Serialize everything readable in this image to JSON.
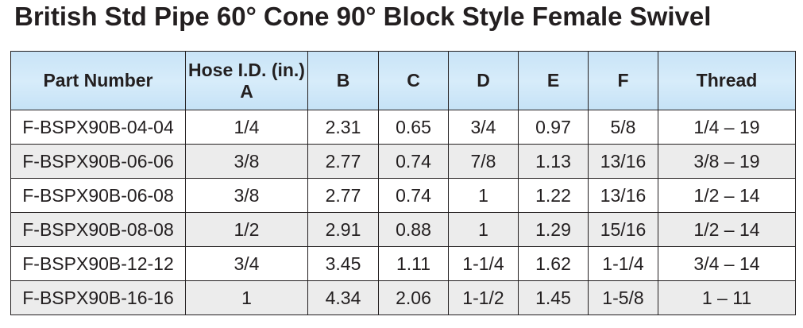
{
  "title": "British Std Pipe 60° Cone 90° Block Style Female Swivel",
  "headers": {
    "part_number": "Part Number",
    "hose_id_line1": "Hose I.D. (in.)",
    "hose_id_line2": "A",
    "b": "B",
    "c": "C",
    "d": "D",
    "e": "E",
    "f": "F",
    "thread": "Thread"
  },
  "rows": [
    {
      "part": "F-BSPX90B-04-04",
      "hose": "1/4",
      "b": "2.31",
      "c": "0.65",
      "d": "3/4",
      "e": "0.97",
      "f": "5/8",
      "thread": "1/4 – 19"
    },
    {
      "part": "F-BSPX90B-06-06",
      "hose": "3/8",
      "b": "2.77",
      "c": "0.74",
      "d": "7/8",
      "e": "1.13",
      "f": "13/16",
      "thread": "3/8 – 19"
    },
    {
      "part": "F-BSPX90B-06-08",
      "hose": "3/8",
      "b": "2.77",
      "c": "0.74",
      "d": "1",
      "e": "1.22",
      "f": "13/16",
      "thread": "1/2 – 14"
    },
    {
      "part": "F-BSPX90B-08-08",
      "hose": "1/2",
      "b": "2.91",
      "c": "0.88",
      "d": "1",
      "e": "1.29",
      "f": "15/16",
      "thread": "1/2 – 14"
    },
    {
      "part": "F-BSPX90B-12-12",
      "hose": "3/4",
      "b": "3.45",
      "c": "1.11",
      "d": "1-1/4",
      "e": "1.62",
      "f": "1-1/4",
      "thread": "3/4 – 14"
    },
    {
      "part": "F-BSPX90B-16-16",
      "hose": "1",
      "b": "4.34",
      "c": "2.06",
      "d": "1-1/2",
      "e": "1.45",
      "f": "1-5/8",
      "thread": "1 – 11"
    }
  ],
  "colors": {
    "header_bg": "#cfe8f8",
    "alt_row_bg": "#ececec",
    "text": "#231f20"
  }
}
